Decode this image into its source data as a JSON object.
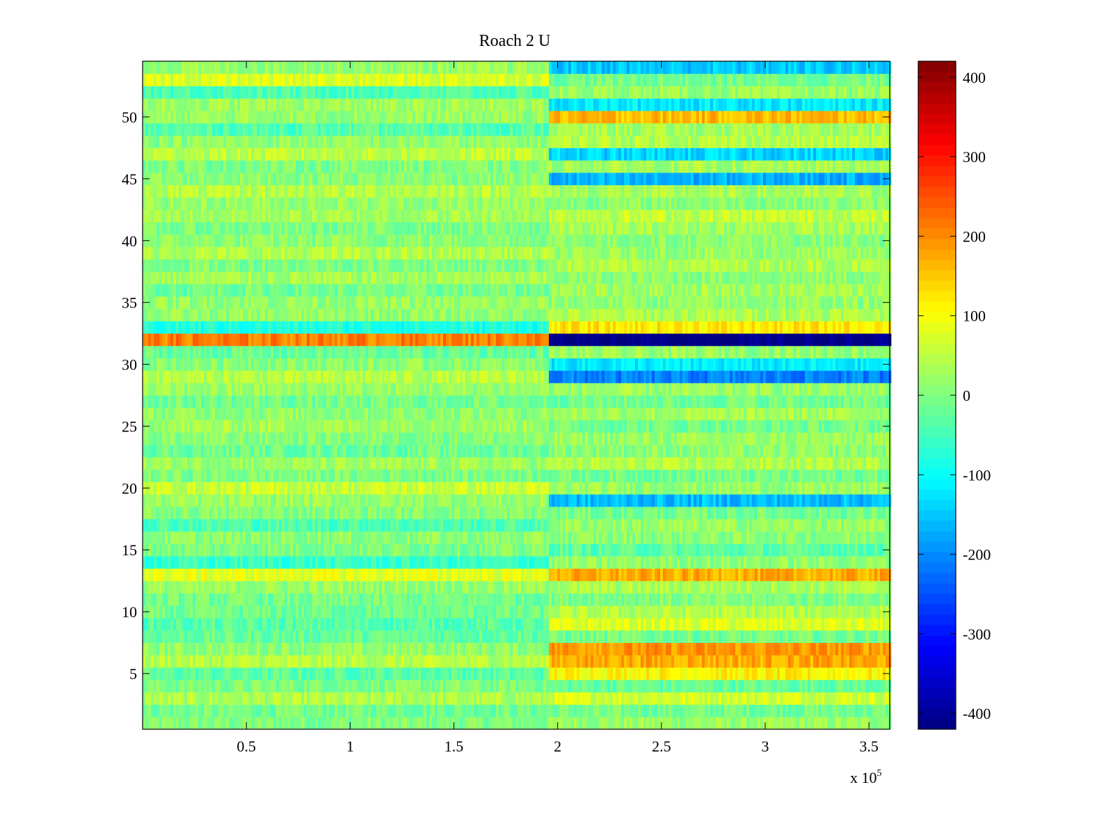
{
  "chart_data": {
    "type": "heatmap",
    "title": "Roach 2 U",
    "xlabel": "",
    "ylabel": "",
    "x_multiplier": "x 10",
    "x_multiplier_exp": "5",
    "xlim": [
      0,
      360000
    ],
    "ylim": [
      0.5,
      54.5
    ],
    "xticks": [
      0.5,
      1,
      1.5,
      2,
      2.5,
      3,
      3.5
    ],
    "xtick_labels": [
      "0.5",
      "1",
      "1.5",
      "2",
      "2.5",
      "3",
      "3.5"
    ],
    "yticks": [
      5,
      10,
      15,
      20,
      25,
      30,
      35,
      40,
      45,
      50
    ],
    "ytick_labels": [
      "5",
      "10",
      "15",
      "20",
      "25",
      "30",
      "35",
      "40",
      "45",
      "50"
    ],
    "colorbar": {
      "colormap": "jet",
      "clim": [
        -420,
        420
      ],
      "ticks": [
        -400,
        -300,
        -200,
        -100,
        0,
        100,
        200,
        300,
        400
      ],
      "tick_labels": [
        "-400",
        "-300",
        "-200",
        "-100",
        "0",
        "100",
        "200",
        "300",
        "400"
      ]
    },
    "rows": 54,
    "segment_break_x": 195000,
    "row_levels_before_break": [
      0,
      -10,
      35,
      0,
      -30,
      45,
      15,
      -20,
      -35,
      -15,
      -10,
      20,
      85,
      -60,
      0,
      10,
      -40,
      5,
      20,
      60,
      0,
      25,
      -15,
      5,
      30,
      15,
      -10,
      20,
      45,
      10,
      -20,
      210,
      -80,
      15,
      20,
      -10,
      30,
      0,
      40,
      10,
      -5,
      30,
      20,
      45,
      10,
      0,
      50,
      15,
      -35,
      20,
      25,
      -40,
      75,
      20
    ],
    "row_levels_after_break": [
      20,
      -10,
      70,
      -20,
      110,
      175,
      190,
      -10,
      75,
      40,
      0,
      35,
      170,
      15,
      -30,
      10,
      20,
      -10,
      -160,
      20,
      -10,
      40,
      10,
      20,
      -10,
      30,
      -10,
      20,
      -210,
      -120,
      20,
      -420,
      120,
      40,
      15,
      30,
      10,
      40,
      20,
      10,
      30,
      55,
      10,
      30,
      -170,
      30,
      -140,
      45,
      30,
      160,
      -120,
      20,
      -10,
      -150
    ],
    "row_level_notes": "Approximate mean values per row (rows 1..54 bottom-to-top) read from the colorbar"
  }
}
